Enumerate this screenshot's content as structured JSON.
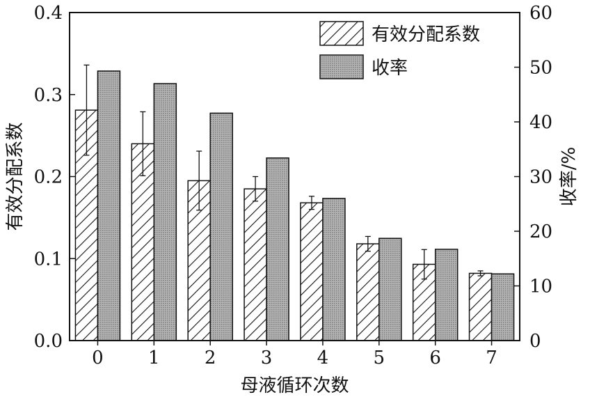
{
  "chart_data": {
    "type": "bar",
    "categories": [
      "0",
      "1",
      "2",
      "3",
      "4",
      "5",
      "6",
      "7"
    ],
    "xlabel": "母液循环次数",
    "ylabel_left": "有效分配系数",
    "ylabel_right": "收率/%",
    "y_left": {
      "lim": [
        0,
        0.4
      ],
      "ticks": [
        "0.0",
        "0.1",
        "0.2",
        "0.3",
        "0.4"
      ]
    },
    "y_right": {
      "lim": [
        0,
        60
      ],
      "ticks": [
        "0",
        "10",
        "20",
        "30",
        "40",
        "50",
        "60"
      ]
    },
    "series": [
      {
        "name": "有效分配系数",
        "axis": "left",
        "pattern": "diagonal-hatch",
        "values": [
          0.281,
          0.24,
          0.195,
          0.185,
          0.168,
          0.118,
          0.093,
          0.082
        ],
        "error": [
          0.055,
          0.039,
          0.036,
          0.015,
          0.008,
          0.009,
          0.018,
          0.003
        ]
      },
      {
        "name": "收率",
        "axis": "right",
        "pattern": "crosshatch-gray",
        "values": [
          49.3,
          47.0,
          41.6,
          33.4,
          26.0,
          18.7,
          16.7,
          12.2
        ]
      }
    ],
    "legend_position": "top-right",
    "grid": false
  }
}
